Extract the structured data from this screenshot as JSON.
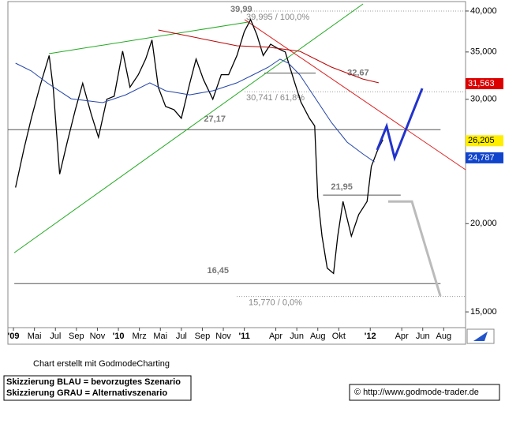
{
  "chart_data": {
    "type": "line",
    "xlim": [
      1.47,
      45.08
    ],
    "ylim": [
      14250,
      41250
    ],
    "log_scale": true,
    "xticks": [
      {
        "value": 2,
        "label": "'09"
      },
      {
        "value": 4,
        "label": "Mai"
      },
      {
        "value": 6,
        "label": "Jul"
      },
      {
        "value": 8,
        "label": "Sep"
      },
      {
        "value": 10,
        "label": "Nov"
      },
      {
        "value": 12,
        "label": "'10"
      },
      {
        "value": 14,
        "label": "Mrz"
      },
      {
        "value": 16,
        "label": "Mai"
      },
      {
        "value": 18,
        "label": "Jul"
      },
      {
        "value": 20,
        "label": "Sep"
      },
      {
        "value": 22,
        "label": "Nov"
      },
      {
        "value": 24,
        "label": "'11"
      },
      {
        "value": 27,
        "label": "Apr"
      },
      {
        "value": 29,
        "label": "Jun"
      },
      {
        "value": 31,
        "label": "Aug"
      },
      {
        "value": 33,
        "label": "Okt"
      },
      {
        "value": 36,
        "label": "'12"
      },
      {
        "value": 39,
        "label": "Apr"
      },
      {
        "value": 41,
        "label": "Jun"
      },
      {
        "value": 43,
        "label": "Aug"
      }
    ],
    "yticks": [
      {
        "value": 40000,
        "label": "40,000"
      },
      {
        "value": 35000,
        "label": "35,000"
      },
      {
        "value": 30000,
        "label": "30,000"
      },
      {
        "value": 20000,
        "label": "20,000"
      },
      {
        "value": 15000,
        "label": "15,000"
      }
    ],
    "series": [
      {
        "color": "#000000",
        "x": [
          2.2,
          3.0,
          3.7,
          4.5,
          5.4,
          5.8,
          6.4,
          7.1,
          7.9,
          8.6,
          9.4,
          10.1,
          10.9,
          11.6,
          12.4,
          13.1,
          13.9,
          14.6,
          15.2,
          15.8,
          16.5,
          17.3,
          18.0,
          18.8,
          19.4,
          20.1,
          21.0,
          21.8,
          22.5,
          23.3,
          24.0,
          24.6,
          25.2,
          25.8,
          26.5,
          27.2,
          27.9,
          28.7,
          29.4,
          30.2,
          30.7,
          31.0,
          31.4,
          31.9,
          32.5,
          32.9,
          33.4,
          34.2,
          34.9,
          35.7,
          36.1,
          36.7,
          37.2
        ],
        "values": [
          22500,
          25500,
          28200,
          31200,
          34600,
          31000,
          23500,
          26000,
          29000,
          31600,
          28600,
          26500,
          30000,
          30300,
          35100,
          31200,
          32500,
          34200,
          36400,
          31200,
          29300,
          29000,
          28200,
          31600,
          34200,
          32000,
          30000,
          32500,
          32500,
          34600,
          37400,
          38900,
          37000,
          34600,
          35900,
          35400,
          35000,
          32000,
          29700,
          28200,
          27500,
          21800,
          19200,
          17300,
          17000,
          19200,
          21500,
          19200,
          20600,
          21500,
          24100,
          25400,
          26300
        ]
      },
      {
        "color": "#2244aa",
        "x": [
          2.2,
          3.7,
          5.2,
          7.5,
          10.5,
          12.7,
          15.0,
          16.5,
          18.8,
          21.0,
          23.3,
          24.8,
          26.3,
          27.4,
          28.2,
          29.3,
          30.8,
          32.3,
          33.8,
          35.3,
          36.4
        ],
        "values": [
          33750,
          32900,
          31650,
          30050,
          29670,
          30440,
          31650,
          30840,
          30440,
          30840,
          31650,
          32470,
          33320,
          34190,
          33750,
          32470,
          30050,
          27820,
          26080,
          25100,
          24460
        ]
      },
      {
        "color": "#bb0000",
        "x": [
          15.8,
          23.3,
          26.3,
          29.3,
          32.3,
          35.3,
          36.8
        ],
        "values": [
          37600,
          35710,
          35550,
          35080,
          33320,
          32050,
          31650
        ]
      }
    ],
    "trendlines": [
      {
        "color": "#22aa22",
        "x": [
          2.08,
          35.31
        ],
        "values": [
          18190,
          40930
        ]
      },
      {
        "color": "#22aa22",
        "x": [
          5.38,
          24.4
        ],
        "values": [
          34810,
          38590
        ]
      },
      {
        "color": "#dd2222",
        "x": [
          24.03,
          45.08
        ],
        "values": [
          38900,
          23840
        ]
      }
    ],
    "levels": [
      {
        "label": "39,99",
        "value": 39990,
        "x": [
          24.03,
          32.3
        ]
      },
      {
        "label": "32,67",
        "value": 32670,
        "x": [
          25.9,
          30.8
        ]
      },
      {
        "label": "27,17",
        "value": 27170,
        "x": [
          1.47,
          42.7
        ]
      },
      {
        "label": "21,95",
        "value": 21950,
        "x": [
          31.5,
          38.9
        ]
      },
      {
        "label": "16,45",
        "value": 16450,
        "x": [
          2.08,
          42.7
        ]
      }
    ],
    "fibonacci": [
      {
        "label": "39,995 / 100,0%",
        "value": 39995
      },
      {
        "label": "30,741 / 61,8%",
        "value": 30741
      },
      {
        "label": "15,770 / 0,0%",
        "value": 15770
      }
    ],
    "scenarios": [
      {
        "color": "#2233cc",
        "x": [
          36.66,
          37.56,
          38.32,
          40.95
        ],
        "values": [
          25420,
          27470,
          24780,
          31080
        ]
      },
      {
        "color": "#bbbbbb",
        "x": [
          37.71,
          39.97,
          42.68
        ],
        "values": [
          21500,
          21500,
          15790
        ]
      }
    ],
    "price_markers": [
      {
        "label": "31,563",
        "value": 31563,
        "color": "#dd0000",
        "text_color": "#ffffff"
      },
      {
        "label": "26,205",
        "value": 26205,
        "color": "#ffee00",
        "text_color": "#000000"
      },
      {
        "label": "24,787",
        "value": 24787,
        "color": "#1144cc",
        "text_color": "#ffffff"
      }
    ]
  },
  "footer": {
    "credit": "Chart erstellt mit GodmodeCharting",
    "legend": [
      "Skizzierung BLAU = bevorzugtes Szenario",
      "Skizzierung GRAU = Alternativszenario"
    ],
    "copyright": "© http://www.godmode-trader.de"
  }
}
